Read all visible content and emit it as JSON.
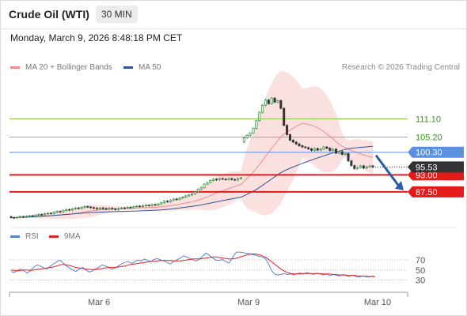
{
  "header": {
    "title": "Crude Oil (WTI)",
    "timeframe": "30 MIN"
  },
  "datetime": "Monday, March 9, 2026 8:48:18 PM CET",
  "legend": {
    "items": [
      {
        "label": "MA 20 + Bollinger Bands",
        "color": "#f08c8c"
      },
      {
        "label": "MA 50",
        "color": "#2f5597"
      }
    ],
    "credit": "Research © 2026 Trading Central"
  },
  "rsi_legend": {
    "items": [
      {
        "label": "RSI",
        "color": "#5b7fd6"
      },
      {
        "label": "9MA",
        "color": "#e32222"
      }
    ]
  },
  "colors": {
    "up": "#2e8b3a",
    "down": "#333333",
    "resistance": "#8bc34a",
    "pivot": "#5b8fe0",
    "support": "#e31b1b",
    "band": "#fadadb",
    "ma20": "#f08c8c",
    "ma50": "#2f5597",
    "arrow": "#2a5ca8",
    "current_price_bg": "#333333"
  },
  "chart_data": [
    {
      "type": "candlestick",
      "title": "Crude Oil (WTI)",
      "timeframe": "30 MIN",
      "ylim": [
        77,
        125
      ],
      "x_ticks": [
        "Mar 6",
        "Mar 9",
        "Mar 10"
      ],
      "grid": false,
      "levels": [
        {
          "label": "111.10",
          "value": 111.1,
          "kind": "resistance"
        },
        {
          "label": "105.20",
          "value": 105.2,
          "kind": "resistance"
        },
        {
          "label": "100.30",
          "value": 100.3,
          "kind": "pivot"
        },
        {
          "label": "93.00",
          "value": 93.0,
          "kind": "support"
        },
        {
          "label": "87.50",
          "value": 87.5,
          "kind": "support"
        }
      ],
      "current_price": {
        "label": "95.53",
        "value": 95.53
      },
      "series": [
        {
          "name": "Price",
          "close": [
            79.2,
            79.1,
            79.3,
            79.5,
            79.4,
            79.6,
            79.8,
            79.7,
            80.0,
            80.2,
            80.1,
            80.4,
            80.6,
            80.5,
            80.9,
            81.2,
            81.0,
            81.5,
            81.8,
            81.6,
            82.0,
            82.3,
            82.1,
            82.5,
            82.8,
            82.6,
            82.4,
            82.2,
            82.0,
            82.3,
            82.1,
            81.9,
            82.2,
            82.0,
            81.8,
            82.1,
            82.3,
            82.2,
            82.5,
            82.4,
            82.7,
            82.9,
            82.8,
            83.0,
            83.2,
            83.1,
            83.4,
            83.3,
            83.6,
            84.0,
            84.5,
            84.3,
            84.8,
            85.2,
            85.0,
            85.5,
            85.8,
            86.2,
            86.5,
            86.8,
            87.5,
            88.3,
            88.9,
            90.0,
            90.5,
            91.2,
            91.6,
            91.4,
            91.8,
            91.6,
            91.5,
            91.8,
            91.5,
            91.3,
            91.8,
            92.0,
            105.0,
            105.8,
            106.5,
            108.0,
            110.5,
            113.2,
            115.5,
            117.2,
            116.0,
            117.8,
            116.5,
            117.0,
            114.5,
            109.0,
            106.0,
            104.2,
            103.6,
            103.0,
            102.4,
            102.0,
            101.8,
            101.4,
            100.9,
            101.5,
            101.0,
            101.3,
            102.0,
            101.6,
            100.9,
            101.3,
            100.0,
            100.5,
            99.6,
            99.9,
            97.5,
            96.0,
            95.0,
            95.4,
            95.9,
            95.2,
            95.6,
            95.9,
            95.53
          ],
          "open": [
            79.5,
            79.2,
            79.1,
            79.3,
            79.5,
            79.4,
            79.6,
            79.8,
            79.7,
            80.0,
            80.2,
            80.1,
            80.4,
            80.6,
            80.5,
            80.9,
            81.2,
            81.0,
            81.5,
            81.8,
            81.6,
            82.0,
            82.3,
            82.1,
            82.5,
            82.8,
            82.6,
            82.4,
            82.2,
            82.0,
            82.3,
            82.1,
            81.9,
            82.2,
            82.0,
            81.8,
            82.1,
            82.3,
            82.2,
            82.5,
            82.4,
            82.7,
            82.9,
            82.8,
            83.0,
            83.2,
            83.1,
            83.4,
            83.3,
            83.6,
            84.0,
            84.5,
            84.3,
            84.8,
            85.2,
            85.0,
            85.5,
            85.8,
            86.2,
            86.5,
            86.8,
            87.5,
            88.3,
            88.9,
            90.0,
            90.5,
            91.2,
            91.6,
            91.4,
            91.8,
            91.6,
            91.5,
            91.8,
            91.5,
            91.3,
            91.8,
            103.6,
            105.0,
            105.8,
            106.5,
            108.0,
            110.5,
            113.2,
            115.5,
            117.2,
            116.0,
            117.8,
            116.5,
            117.0,
            114.5,
            109.0,
            106.0,
            104.2,
            103.6,
            103.0,
            102.4,
            102.0,
            101.8,
            101.4,
            100.9,
            101.5,
            101.0,
            101.3,
            102.0,
            101.6,
            100.9,
            101.3,
            100.0,
            100.5,
            99.6,
            99.9,
            97.5,
            96.0,
            95.0,
            95.4,
            95.9,
            95.2,
            95.6,
            95.9
          ]
        },
        {
          "name": "MA 20"
        },
        {
          "name": "MA 50"
        }
      ]
    },
    {
      "type": "line",
      "y_ticks": [
        70,
        50,
        30
      ],
      "ylim": [
        15,
        100
      ],
      "x_ticks": [
        "Mar 6",
        "Mar 9",
        "Mar 10"
      ],
      "series": [
        {
          "name": "RSI",
          "values": [
            47,
            45,
            50,
            52,
            48,
            44,
            49,
            56,
            60,
            58,
            54,
            52,
            57,
            62,
            66,
            70,
            64,
            58,
            54,
            50,
            47,
            52,
            55,
            50,
            46,
            48,
            52,
            56,
            60,
            58,
            55,
            52,
            54,
            58,
            62,
            65,
            67,
            63,
            66,
            70,
            68,
            72,
            69,
            67,
            71,
            73,
            70,
            68,
            65,
            62,
            67,
            70,
            74,
            78,
            76,
            73,
            70,
            68,
            72,
            78,
            84,
            79,
            74,
            70,
            69,
            71,
            67,
            64,
            73,
            84,
            86,
            85,
            84,
            83,
            81,
            80,
            78,
            76,
            74,
            65,
            50,
            42,
            40,
            41,
            43,
            41,
            42,
            40,
            43,
            44,
            42,
            45,
            43,
            41,
            44,
            42,
            40,
            42,
            39,
            41,
            40,
            38,
            41,
            39,
            37,
            40,
            37,
            36,
            38,
            37,
            36,
            38,
            37
          ]
        },
        {
          "name": "9MA",
          "values": [
            50,
            49,
            48,
            49,
            50,
            50,
            49,
            50,
            51,
            52,
            53,
            54,
            55,
            56,
            58,
            60,
            61,
            60,
            59,
            57,
            55,
            54,
            53,
            52,
            51,
            51,
            51,
            52,
            53,
            54,
            55,
            55,
            55,
            56,
            57,
            58,
            60,
            61,
            62,
            63,
            64,
            65,
            66,
            67,
            67,
            68,
            69,
            69,
            69,
            69,
            68,
            68,
            68,
            69,
            70,
            71,
            72,
            72,
            72,
            73,
            74,
            75,
            76,
            76,
            75,
            74,
            73,
            72,
            72,
            73,
            75,
            77,
            79,
            81,
            82,
            82,
            81,
            79,
            76,
            72,
            67,
            62,
            57,
            52,
            48,
            45,
            43,
            42,
            42,
            42,
            43,
            43,
            43,
            43,
            43,
            43,
            42,
            42,
            42,
            41,
            41,
            40,
            40,
            40,
            39,
            39,
            39,
            38,
            38,
            38,
            37,
            37,
            37
          ]
        }
      ]
    }
  ]
}
